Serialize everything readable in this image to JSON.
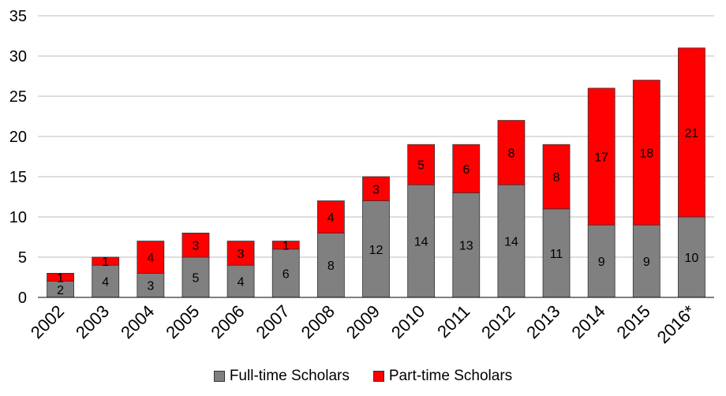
{
  "chart_data": {
    "type": "bar",
    "stacked": true,
    "categories": [
      "2002",
      "2003",
      "2004",
      "2005",
      "2006",
      "2007",
      "2008",
      "2009",
      "2010",
      "2011",
      "2012",
      "2013",
      "2014",
      "2015",
      "2016*"
    ],
    "series": [
      {
        "name": "Full-time Scholars",
        "color": "#808080",
        "values": [
          2,
          4,
          3,
          5,
          4,
          6,
          8,
          12,
          14,
          13,
          14,
          11,
          9,
          9,
          10
        ]
      },
      {
        "name": "Part-time Scholars",
        "color": "#ff0000",
        "values": [
          1,
          1,
          4,
          3,
          3,
          1,
          4,
          3,
          5,
          6,
          8,
          8,
          17,
          18,
          21
        ]
      }
    ],
    "ylim": [
      0,
      35
    ],
    "yticks": [
      "0",
      "5",
      "10",
      "15",
      "20",
      "25",
      "30",
      "35"
    ],
    "grid": true,
    "legend_position": "bottom"
  }
}
